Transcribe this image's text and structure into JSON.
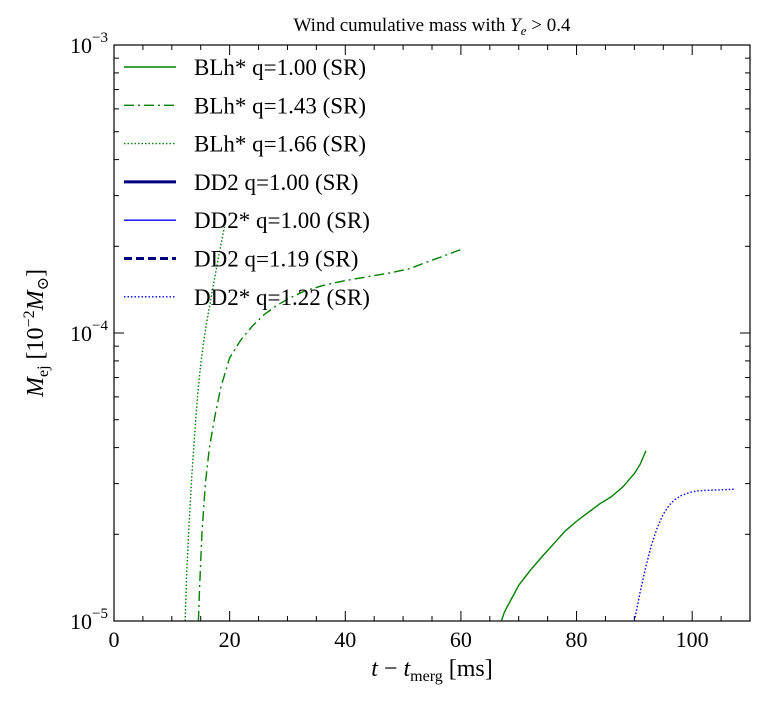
{
  "chart_data": {
    "type": "line",
    "title": "Wind cumulative mass with Y_e > 0.4",
    "title_parts": {
      "prefix": "Wind cumulative mass with ",
      "var": "Y",
      "sub": "e",
      "suffix": " > 0.4"
    },
    "xlabel": "t − t_merg [ms]",
    "xlabel_parts": {
      "t": "t",
      "op": " − ",
      "t2": "t",
      "sub": "merg",
      "unit": " [ms]"
    },
    "ylabel": "M_ej [10^-2 M_⊙]",
    "ylabel_parts": {
      "M": "M",
      "sub": "ej",
      "unit_open": " [10",
      "exp": "−2",
      "M2": "M",
      "sun": "⊙",
      "unit_close": "]"
    },
    "xlim": [
      0,
      110
    ],
    "ylim": [
      1e-05,
      0.001
    ],
    "yscale": "log",
    "grid": false,
    "legend_position": "top-left",
    "x_ticks": [
      {
        "value": 0,
        "label": "0"
      },
      {
        "value": 20,
        "label": "20"
      },
      {
        "value": 40,
        "label": "40"
      },
      {
        "value": 60,
        "label": "60"
      },
      {
        "value": 80,
        "label": "80"
      },
      {
        "value": 100,
        "label": "100"
      }
    ],
    "y_ticks": [
      {
        "value": 1e-05,
        "base": "10",
        "exp": "−5"
      },
      {
        "value": 0.0001,
        "base": "10",
        "exp": "−4"
      },
      {
        "value": 0.001,
        "base": "10",
        "exp": "−3"
      }
    ],
    "series": [
      {
        "name": "BLh* q=1.00 (SR)",
        "color": "#008000",
        "style": "solid",
        "width": 1.4,
        "x": [
          67.0,
          67.5,
          68,
          69,
          70,
          72,
          74,
          76,
          78,
          80,
          82,
          84,
          86,
          88,
          90,
          91,
          92
        ],
        "y": [
          1e-05,
          1.07e-05,
          1.12e-05,
          1.22e-05,
          1.33e-05,
          1.5e-05,
          1.67e-05,
          1.85e-05,
          2.05e-05,
          2.22e-05,
          2.38e-05,
          2.55e-05,
          2.7e-05,
          2.92e-05,
          3.25e-05,
          3.5e-05,
          3.9e-05
        ]
      },
      {
        "name": "BLh* q=1.43 (SR)",
        "color": "#008000",
        "style": "dashdot",
        "width": 1.4,
        "x": [
          14.6,
          14.8,
          15.2,
          15.8,
          16.5,
          17.5,
          18.5,
          20,
          22,
          24,
          26,
          28,
          30,
          33,
          36,
          40,
          44,
          48,
          51,
          54,
          57,
          60
        ],
        "y": [
          1e-05,
          1.3e-05,
          2e-05,
          3e-05,
          4e-05,
          5.2e-05,
          6.5e-05,
          8.2e-05,
          9.5e-05,
          0.000106,
          0.000116,
          0.000124,
          0.000131,
          0.00014,
          0.000146,
          0.000152,
          0.000157,
          0.000162,
          0.000167,
          0.000176,
          0.000185,
          0.000195
        ]
      },
      {
        "name": "BLh* q=1.66 (SR)",
        "color": "#008000",
        "style": "dotted",
        "width": 1.4,
        "x": [
          12.3,
          12.6,
          13,
          13.5,
          14,
          14.5,
          15,
          15.5,
          16,
          17,
          18,
          19.3
        ],
        "y": [
          1e-05,
          1.5e-05,
          2.2e-05,
          3.3e-05,
          4.6e-05,
          6.2e-05,
          7.8e-05,
          9.3e-05,
          0.000108,
          0.00014,
          0.00018,
          0.000245
        ]
      },
      {
        "name": "DD2 q=1.00 (SR)",
        "color": "#000080",
        "style": "solid",
        "width": 3,
        "x": [],
        "y": []
      },
      {
        "name": "DD2* q=1.00 (SR)",
        "color": "#0000ff",
        "style": "solid",
        "width": 1.4,
        "x": [],
        "y": []
      },
      {
        "name": "DD2 q=1.19 (SR)",
        "color": "#000080",
        "style": "dashed",
        "width": 3,
        "x": [],
        "y": []
      },
      {
        "name": "DD2* q=1.22 (SR)",
        "color": "#0000ff",
        "style": "dotted",
        "width": 1.4,
        "x": [
          90.0,
          90.5,
          91,
          92,
          93,
          94,
          95,
          96,
          97,
          98,
          99,
          100,
          101,
          102,
          104,
          106,
          107.5
        ],
        "y": [
          1e-05,
          1.12e-05,
          1.26e-05,
          1.55e-05,
          1.85e-05,
          2.12e-05,
          2.35e-05,
          2.52e-05,
          2.64e-05,
          2.72e-05,
          2.77e-05,
          2.81e-05,
          2.83e-05,
          2.84e-05,
          2.85e-05,
          2.86e-05,
          2.87e-05
        ]
      }
    ]
  }
}
